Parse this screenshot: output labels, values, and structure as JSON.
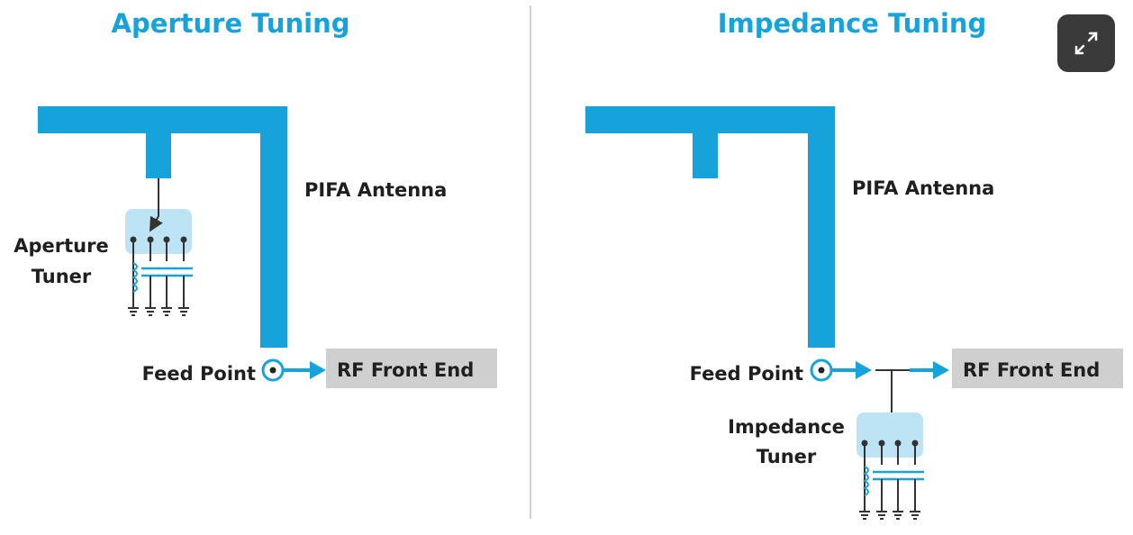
{
  "colors": {
    "accent": "#16a3dc",
    "tuner_box": "#bde4f4",
    "rf_box": "#cfcfcf",
    "divider": "#d0d0d0",
    "text": "#1f1f1f"
  },
  "left_panel": {
    "title": "Aperture Tuning",
    "antenna_label": "PIFA Antenna",
    "tuner_label_line1": "Aperture",
    "tuner_label_line2": "Tuner",
    "feed_label": "Feed Point",
    "rf_label": "RF Front End"
  },
  "right_panel": {
    "title": "Impedance Tuning",
    "antenna_label": "PIFA Antenna",
    "tuner_label_line1": "Impedance",
    "tuner_label_line2": "Tuner",
    "feed_label": "Feed Point",
    "rf_label": "RF Front End"
  },
  "controls": {
    "expand_icon": "expand-icon"
  }
}
